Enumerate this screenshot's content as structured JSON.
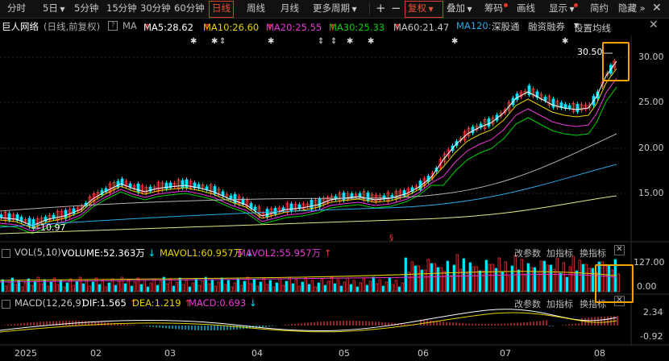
{
  "toolbar": {
    "items": [
      {
        "label": "分时",
        "x": 6
      },
      {
        "label": "5日",
        "x": 50,
        "arrow": true
      },
      {
        "label": "5分钟",
        "x": 89
      },
      {
        "label": "15分钟",
        "x": 129
      },
      {
        "label": "30分钟",
        "x": 171
      },
      {
        "label": "60分钟",
        "x": 213
      },
      {
        "label": "日线",
        "x": 259,
        "active": true
      },
      {
        "label": "周线",
        "x": 303
      },
      {
        "label": "月线",
        "x": 345
      },
      {
        "label": "更多周期",
        "x": 385,
        "arrow": true
      }
    ],
    "right": {
      "plus": "+",
      "minus": "−",
      "fuquan": "复权",
      "add": "叠加",
      "choum": "筹码",
      "draw": "画线",
      "display": "显示",
      "simple": "简约",
      "hide": "隐藏"
    }
  },
  "stock": {
    "name": "巨人网络",
    "mode": "(日线,前复权)",
    "ma": "MA",
    "ma5": "MA5:28.62",
    "ma10": "MA10:26.60",
    "ma20": "MA20:25.55",
    "ma30": "MA30:25.33",
    "ma60": "MA60:21.47",
    "ma120": "MA120:1",
    "tag1": "深股通",
    "tag2": "融资融券",
    "settings": "设置均线"
  },
  "colors": {
    "up": "#ff3c3c",
    "down": "#00e4ff",
    "ma5": "#ffffff",
    "ma10": "#e7d200",
    "ma20": "#e83ad8",
    "ma30": "#00d200",
    "ma60": "#b4b4b4",
    "ma120": "#2aaae8",
    "ma250": "#e8e88a"
  },
  "price_axis": {
    "labels": [
      "30.00",
      "25.00",
      "20.00",
      "15.00"
    ]
  },
  "annotations": {
    "high": "30.50",
    "low": "10.97"
  },
  "volume_panel": {
    "label": "VOL(5,10)",
    "volume": "VOLUME:52.363万",
    "mavol1": "MAVOL1:60.957万",
    "mavol2": "MAVOL2:55.957万",
    "axis": [
      "127.00",
      "0.00"
    ]
  },
  "macd_panel": {
    "label": "MACD(12,26,9)",
    "dif": "DIF:1.565",
    "dea": "DEA:1.219",
    "macd": "MACD:0.693",
    "axis": [
      "2.34",
      "-0.92"
    ]
  },
  "panel_buttons": {
    "params": "改参数",
    "add": "加指标",
    "swap": "换指标"
  },
  "x_axis": [
    {
      "label": "2025",
      "x": 18
    },
    {
      "label": "02",
      "x": 112
    },
    {
      "label": "03",
      "x": 204
    },
    {
      "label": "04",
      "x": 312
    },
    {
      "label": "05",
      "x": 420
    },
    {
      "label": "06",
      "x": 518
    },
    {
      "label": "07",
      "x": 620
    },
    {
      "label": "08",
      "x": 737
    }
  ]
}
